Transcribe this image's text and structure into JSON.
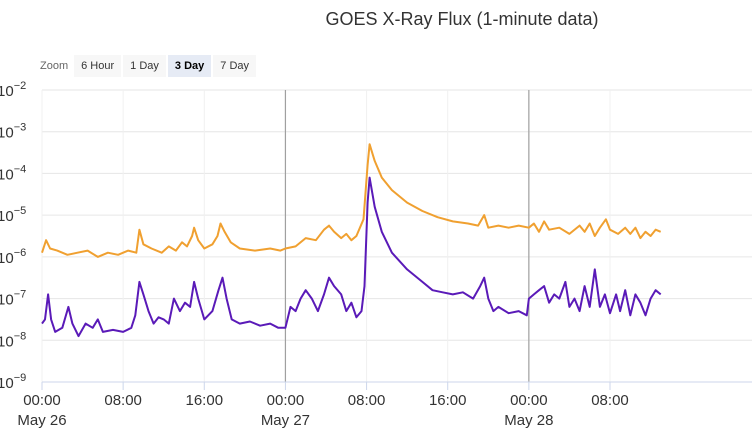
{
  "title": "GOES X-Ray Flux (1-minute data)",
  "zoom": {
    "label": "Zoom",
    "buttons": [
      "6 Hour",
      "1 Day",
      "3 Day",
      "7 Day"
    ],
    "active": "3 Day"
  },
  "chart_data": {
    "type": "line",
    "title": "GOES X-Ray Flux (1-minute data)",
    "xlabel": "",
    "ylabel": "",
    "y_scale": "log",
    "ylim_exponents": [
      -9,
      -2
    ],
    "ytick_base": "10",
    "ytick_exponents": [
      -2,
      -3,
      -4,
      -5,
      -6,
      -7,
      -8,
      -9
    ],
    "xlim_hours": [
      0,
      70
    ],
    "xticks": [
      {
        "hour": 0,
        "time": "00:00",
        "date": "May 26"
      },
      {
        "hour": 8,
        "time": "08:00",
        "date": ""
      },
      {
        "hour": 16,
        "time": "16:00",
        "date": ""
      },
      {
        "hour": 24,
        "time": "00:00",
        "date": "May 27"
      },
      {
        "hour": 32,
        "time": "08:00",
        "date": ""
      },
      {
        "hour": 40,
        "time": "16:00",
        "date": ""
      },
      {
        "hour": 48,
        "time": "00:00",
        "date": "May 28"
      },
      {
        "hour": 56,
        "time": "08:00",
        "date": ""
      }
    ],
    "day_boundaries_hours": [
      24,
      48
    ],
    "grid": true,
    "series": [
      {
        "color": "#f0a030",
        "points": [
          [
            0.0,
            -5.9
          ],
          [
            0.4,
            -5.6
          ],
          [
            0.8,
            -5.8
          ],
          [
            1.5,
            -5.85
          ],
          [
            2.5,
            -5.95
          ],
          [
            3.5,
            -5.9
          ],
          [
            4.5,
            -5.85
          ],
          [
            5.5,
            -6.0
          ],
          [
            6.5,
            -5.9
          ],
          [
            7.5,
            -5.95
          ],
          [
            8.5,
            -5.85
          ],
          [
            9.3,
            -5.9
          ],
          [
            9.6,
            -5.35
          ],
          [
            10.0,
            -5.7
          ],
          [
            10.8,
            -5.8
          ],
          [
            11.8,
            -5.9
          ],
          [
            12.5,
            -5.75
          ],
          [
            13.2,
            -5.85
          ],
          [
            13.8,
            -5.65
          ],
          [
            14.3,
            -5.75
          ],
          [
            14.8,
            -5.5
          ],
          [
            15.0,
            -5.3
          ],
          [
            15.4,
            -5.6
          ],
          [
            16.0,
            -5.8
          ],
          [
            16.8,
            -5.7
          ],
          [
            17.3,
            -5.5
          ],
          [
            17.6,
            -5.2
          ],
          [
            18.0,
            -5.4
          ],
          [
            18.6,
            -5.65
          ],
          [
            19.5,
            -5.8
          ],
          [
            21.0,
            -5.85
          ],
          [
            22.5,
            -5.8
          ],
          [
            23.5,
            -5.85
          ],
          [
            24.0,
            -5.8
          ],
          [
            25.0,
            -5.75
          ],
          [
            26.0,
            -5.55
          ],
          [
            27.0,
            -5.6
          ],
          [
            27.8,
            -5.35
          ],
          [
            28.3,
            -5.25
          ],
          [
            28.8,
            -5.4
          ],
          [
            29.5,
            -5.55
          ],
          [
            30.0,
            -5.45
          ],
          [
            30.5,
            -5.6
          ],
          [
            31.0,
            -5.5
          ],
          [
            31.7,
            -5.1
          ],
          [
            32.1,
            -3.8
          ],
          [
            32.3,
            -3.3
          ],
          [
            32.8,
            -3.7
          ],
          [
            33.5,
            -4.1
          ],
          [
            34.5,
            -4.4
          ],
          [
            36.0,
            -4.7
          ],
          [
            37.5,
            -4.9
          ],
          [
            39.0,
            -5.05
          ],
          [
            40.5,
            -5.15
          ],
          [
            42.0,
            -5.2
          ],
          [
            43.0,
            -5.25
          ],
          [
            43.6,
            -5.0
          ],
          [
            44.0,
            -5.3
          ],
          [
            45.0,
            -5.25
          ],
          [
            46.0,
            -5.3
          ],
          [
            47.0,
            -5.25
          ],
          [
            48.0,
            -5.3
          ],
          [
            48.5,
            -5.2
          ],
          [
            49.0,
            -5.4
          ],
          [
            49.5,
            -5.15
          ],
          [
            50.0,
            -5.35
          ],
          [
            51.0,
            -5.3
          ],
          [
            52.0,
            -5.45
          ],
          [
            53.0,
            -5.25
          ],
          [
            53.5,
            -5.4
          ],
          [
            54.0,
            -5.2
          ],
          [
            54.5,
            -5.5
          ],
          [
            55.0,
            -5.3
          ],
          [
            55.6,
            -5.1
          ],
          [
            56.0,
            -5.35
          ],
          [
            56.8,
            -5.45
          ],
          [
            57.5,
            -5.3
          ],
          [
            58.0,
            -5.45
          ],
          [
            58.5,
            -5.3
          ],
          [
            59.0,
            -5.55
          ],
          [
            59.5,
            -5.4
          ],
          [
            60.0,
            -5.5
          ],
          [
            60.5,
            -5.35
          ],
          [
            61.0,
            -5.4
          ]
        ]
      },
      {
        "color": "#5a1ab8",
        "points": [
          [
            0.0,
            -7.6
          ],
          [
            0.3,
            -7.5
          ],
          [
            0.6,
            -6.9
          ],
          [
            0.9,
            -7.5
          ],
          [
            1.3,
            -7.8
          ],
          [
            2.0,
            -7.7
          ],
          [
            2.6,
            -7.2
          ],
          [
            3.0,
            -7.6
          ],
          [
            3.6,
            -7.9
          ],
          [
            4.3,
            -7.6
          ],
          [
            5.0,
            -7.7
          ],
          [
            5.5,
            -7.5
          ],
          [
            6.0,
            -7.8
          ],
          [
            7.0,
            -7.75
          ],
          [
            8.0,
            -7.8
          ],
          [
            8.8,
            -7.7
          ],
          [
            9.2,
            -7.4
          ],
          [
            9.6,
            -6.6
          ],
          [
            10.0,
            -6.9
          ],
          [
            10.5,
            -7.3
          ],
          [
            11.0,
            -7.6
          ],
          [
            11.5,
            -7.45
          ],
          [
            12.0,
            -7.5
          ],
          [
            12.5,
            -7.6
          ],
          [
            13.0,
            -7.0
          ],
          [
            13.6,
            -7.3
          ],
          [
            14.1,
            -7.1
          ],
          [
            14.6,
            -7.2
          ],
          [
            15.0,
            -6.6
          ],
          [
            15.4,
            -7.0
          ],
          [
            16.0,
            -7.5
          ],
          [
            16.8,
            -7.3
          ],
          [
            17.4,
            -6.8
          ],
          [
            17.8,
            -6.5
          ],
          [
            18.2,
            -7.0
          ],
          [
            18.7,
            -7.5
          ],
          [
            19.5,
            -7.6
          ],
          [
            20.5,
            -7.55
          ],
          [
            21.5,
            -7.65
          ],
          [
            22.5,
            -7.6
          ],
          [
            23.3,
            -7.7
          ],
          [
            24.0,
            -7.7
          ],
          [
            24.5,
            -7.2
          ],
          [
            25.0,
            -7.3
          ],
          [
            25.5,
            -7.0
          ],
          [
            26.0,
            -6.8
          ],
          [
            26.6,
            -7.0
          ],
          [
            27.2,
            -7.3
          ],
          [
            27.8,
            -6.9
          ],
          [
            28.3,
            -6.5
          ],
          [
            28.8,
            -6.7
          ],
          [
            29.5,
            -6.9
          ],
          [
            30.0,
            -7.3
          ],
          [
            30.5,
            -7.1
          ],
          [
            31.0,
            -7.45
          ],
          [
            31.5,
            -7.3
          ],
          [
            31.8,
            -6.7
          ],
          [
            32.1,
            -4.7
          ],
          [
            32.3,
            -4.1
          ],
          [
            32.8,
            -4.8
          ],
          [
            33.5,
            -5.4
          ],
          [
            34.5,
            -5.9
          ],
          [
            36.0,
            -6.3
          ],
          [
            37.5,
            -6.6
          ],
          [
            38.5,
            -6.8
          ],
          [
            39.5,
            -6.85
          ],
          [
            40.5,
            -6.9
          ],
          [
            41.5,
            -6.85
          ],
          [
            42.5,
            -7.0
          ],
          [
            43.2,
            -6.7
          ],
          [
            43.6,
            -6.5
          ],
          [
            44.0,
            -7.0
          ],
          [
            44.5,
            -7.3
          ],
          [
            45.0,
            -7.2
          ],
          [
            46.0,
            -7.35
          ],
          [
            47.0,
            -7.3
          ],
          [
            47.8,
            -7.4
          ],
          [
            48.0,
            -7.0
          ],
          [
            48.5,
            -6.9
          ],
          [
            49.0,
            -6.8
          ],
          [
            49.5,
            -6.7
          ],
          [
            50.0,
            -7.1
          ],
          [
            50.5,
            -6.9
          ],
          [
            51.0,
            -7.0
          ],
          [
            51.6,
            -6.6
          ],
          [
            52.0,
            -7.2
          ],
          [
            52.5,
            -7.0
          ],
          [
            53.0,
            -7.3
          ],
          [
            53.5,
            -6.7
          ],
          [
            54.0,
            -7.2
          ],
          [
            54.5,
            -6.3
          ],
          [
            55.0,
            -7.2
          ],
          [
            55.5,
            -6.9
          ],
          [
            56.0,
            -7.35
          ],
          [
            56.6,
            -6.9
          ],
          [
            57.0,
            -7.3
          ],
          [
            57.5,
            -6.8
          ],
          [
            58.0,
            -7.4
          ],
          [
            58.5,
            -6.9
          ],
          [
            59.0,
            -7.1
          ],
          [
            59.5,
            -7.4
          ],
          [
            60.0,
            -7.0
          ],
          [
            60.5,
            -6.8
          ],
          [
            61.0,
            -6.9
          ]
        ]
      }
    ]
  }
}
